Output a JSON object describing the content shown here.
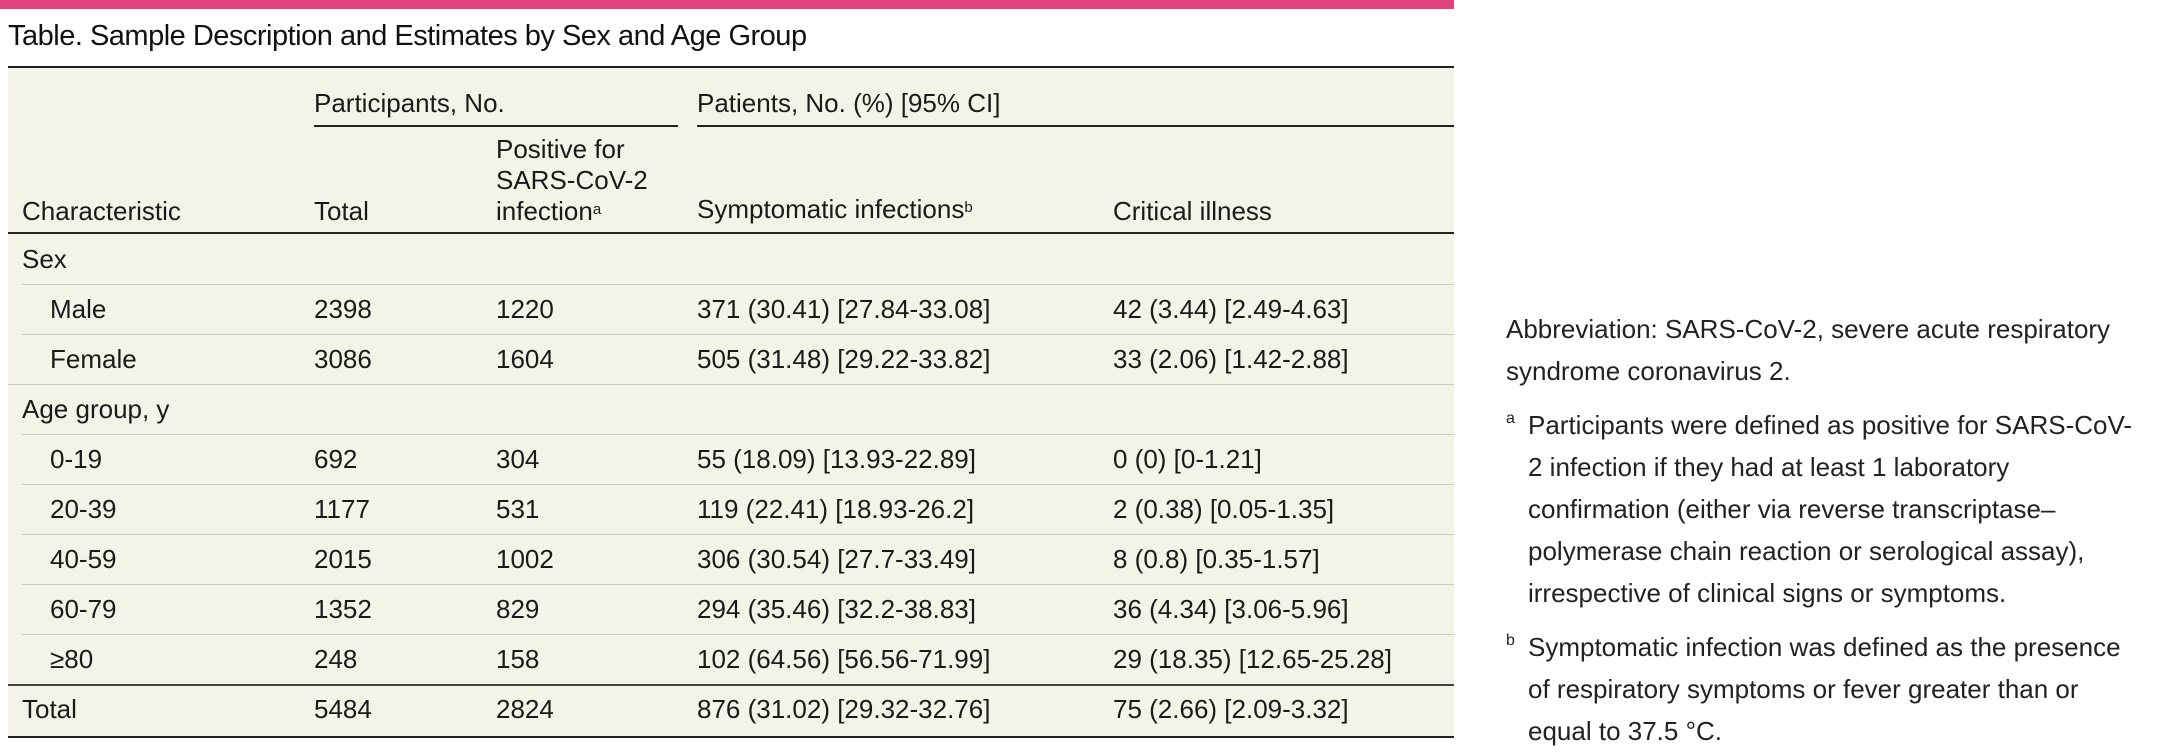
{
  "table": {
    "title": "Table. Sample Description and Estimates by Sex and Age Group",
    "group_headers": {
      "participants": "Participants, No.",
      "patients": "Patients, No. (%) [95% CI]"
    },
    "columns": {
      "characteristic": "Characteristic",
      "total": "Total",
      "positive_line1": "Positive for",
      "positive_line2": "SARS-CoV-2",
      "positive_line3": "infection",
      "positive_sup": "a",
      "symptomatic": "Symptomatic infections",
      "symptomatic_sup": "b",
      "critical": "Critical illness"
    },
    "rows": [
      {
        "label": "Sex",
        "total": "",
        "positive": "",
        "symptomatic": "",
        "critical": ""
      },
      {
        "label": "Male",
        "total": "2398",
        "positive": "1220",
        "symptomatic": "371 (30.41) [27.84-33.08]",
        "critical": "42 (3.44) [2.49-4.63]"
      },
      {
        "label": "Female",
        "total": "3086",
        "positive": "1604",
        "symptomatic": "505 (31.48) [29.22-33.82]",
        "critical": "33 (2.06) [1.42-2.88]"
      },
      {
        "label": "Age group, y",
        "total": "",
        "positive": "",
        "symptomatic": "",
        "critical": ""
      },
      {
        "label": "0-19",
        "total": "692",
        "positive": "304",
        "symptomatic": "55 (18.09) [13.93-22.89]",
        "critical": "0 (0) [0-1.21]"
      },
      {
        "label": "20-39",
        "total": "1177",
        "positive": "531",
        "symptomatic": "119 (22.41) [18.93-26.2]",
        "critical": "2 (0.38) [0.05-1.35]"
      },
      {
        "label": "40-59",
        "total": "2015",
        "positive": "1002",
        "symptomatic": "306 (30.54) [27.7-33.49]",
        "critical": "8 (0.8) [0.35-1.57]"
      },
      {
        "label": "60-79",
        "total": "1352",
        "positive": "829",
        "symptomatic": "294 (35.46) [32.2-38.83]",
        "critical": "36 (4.34) [3.06-5.96]"
      },
      {
        "label": "≥80",
        "total": "248",
        "positive": "158",
        "symptomatic": "102 (64.56) [56.56-71.99]",
        "critical": "29 (18.35) [12.65-25.28]"
      },
      {
        "label": "Total",
        "total": "5484",
        "positive": "2824",
        "symptomatic": "876 (31.02) [29.32-32.76]",
        "critical": "75 (2.66) [2.09-3.32]"
      }
    ]
  },
  "footnotes": {
    "abbreviation": "Abbreviation: SARS-CoV-2, severe acute respiratory syndrome coronavirus 2.",
    "a_mark": "a",
    "a_text": "Participants were defined as positive for SARS-CoV-2 infection if they had at least 1 laboratory confirmation (either via reverse transcriptase–polymerase chain reaction or serological assay), irrespective of clinical signs or symptoms.",
    "b_mark": "b",
    "b_text": "Symptomatic infection was defined as the presence of respiratory symptoms or fever greater than or equal to 37.5 °C."
  },
  "colors": {
    "accent_rule": "#e0427a",
    "table_background": "#f4f3e8"
  }
}
